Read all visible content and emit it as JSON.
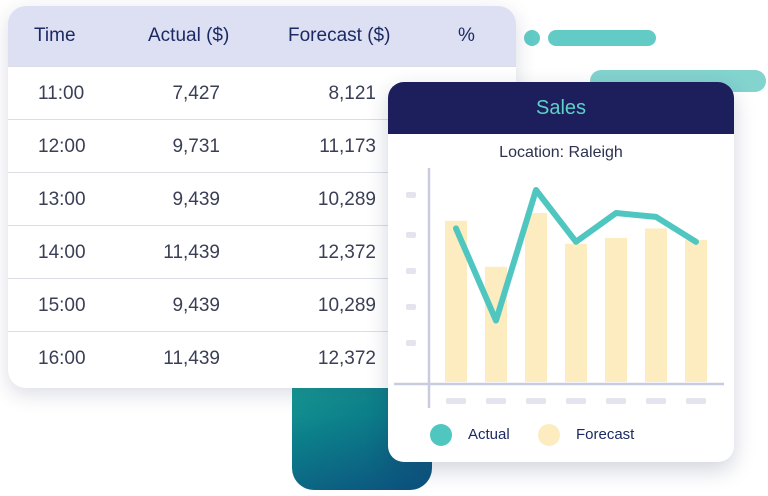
{
  "table": {
    "headers": [
      "Time",
      "Actual ($)",
      "Forecast ($)",
      "%"
    ],
    "rows": [
      {
        "time": "11:00",
        "actual": "7,427",
        "forecast": "8,121"
      },
      {
        "time": "12:00",
        "actual": "9,731",
        "forecast": "11,173"
      },
      {
        "time": "13:00",
        "actual": "9,439",
        "forecast": "10,289"
      },
      {
        "time": "14:00",
        "actual": "11,439",
        "forecast": "12,372"
      },
      {
        "time": "15:00",
        "actual": "9,439",
        "forecast": "10,289"
      },
      {
        "time": "16:00",
        "actual": "11,439",
        "forecast": "12,372"
      }
    ]
  },
  "sales_card": {
    "title": "Sales",
    "location": "Location: Raleigh"
  },
  "legend": {
    "actual": "Actual",
    "forecast": "Forecast"
  },
  "colors": {
    "navy": "#1c1f5c",
    "teal": "#4fc7c0",
    "bar": "#fdecc0",
    "header_bg": "#dde0f3"
  },
  "chart_data": {
    "type": "bar",
    "categories": [
      "",
      "",
      "",
      "",
      "",
      "",
      ""
    ],
    "series": [
      {
        "name": "Forecast",
        "type": "bar",
        "values": [
          0.84,
          0.6,
          0.88,
          0.72,
          0.75,
          0.8,
          0.74
        ]
      },
      {
        "name": "Actual",
        "type": "line",
        "values": [
          0.8,
          0.32,
          1.0,
          0.73,
          0.88,
          0.86,
          0.73
        ]
      }
    ],
    "ylim": [
      0,
      1
    ],
    "grid": false,
    "legend_position": "bottom"
  }
}
